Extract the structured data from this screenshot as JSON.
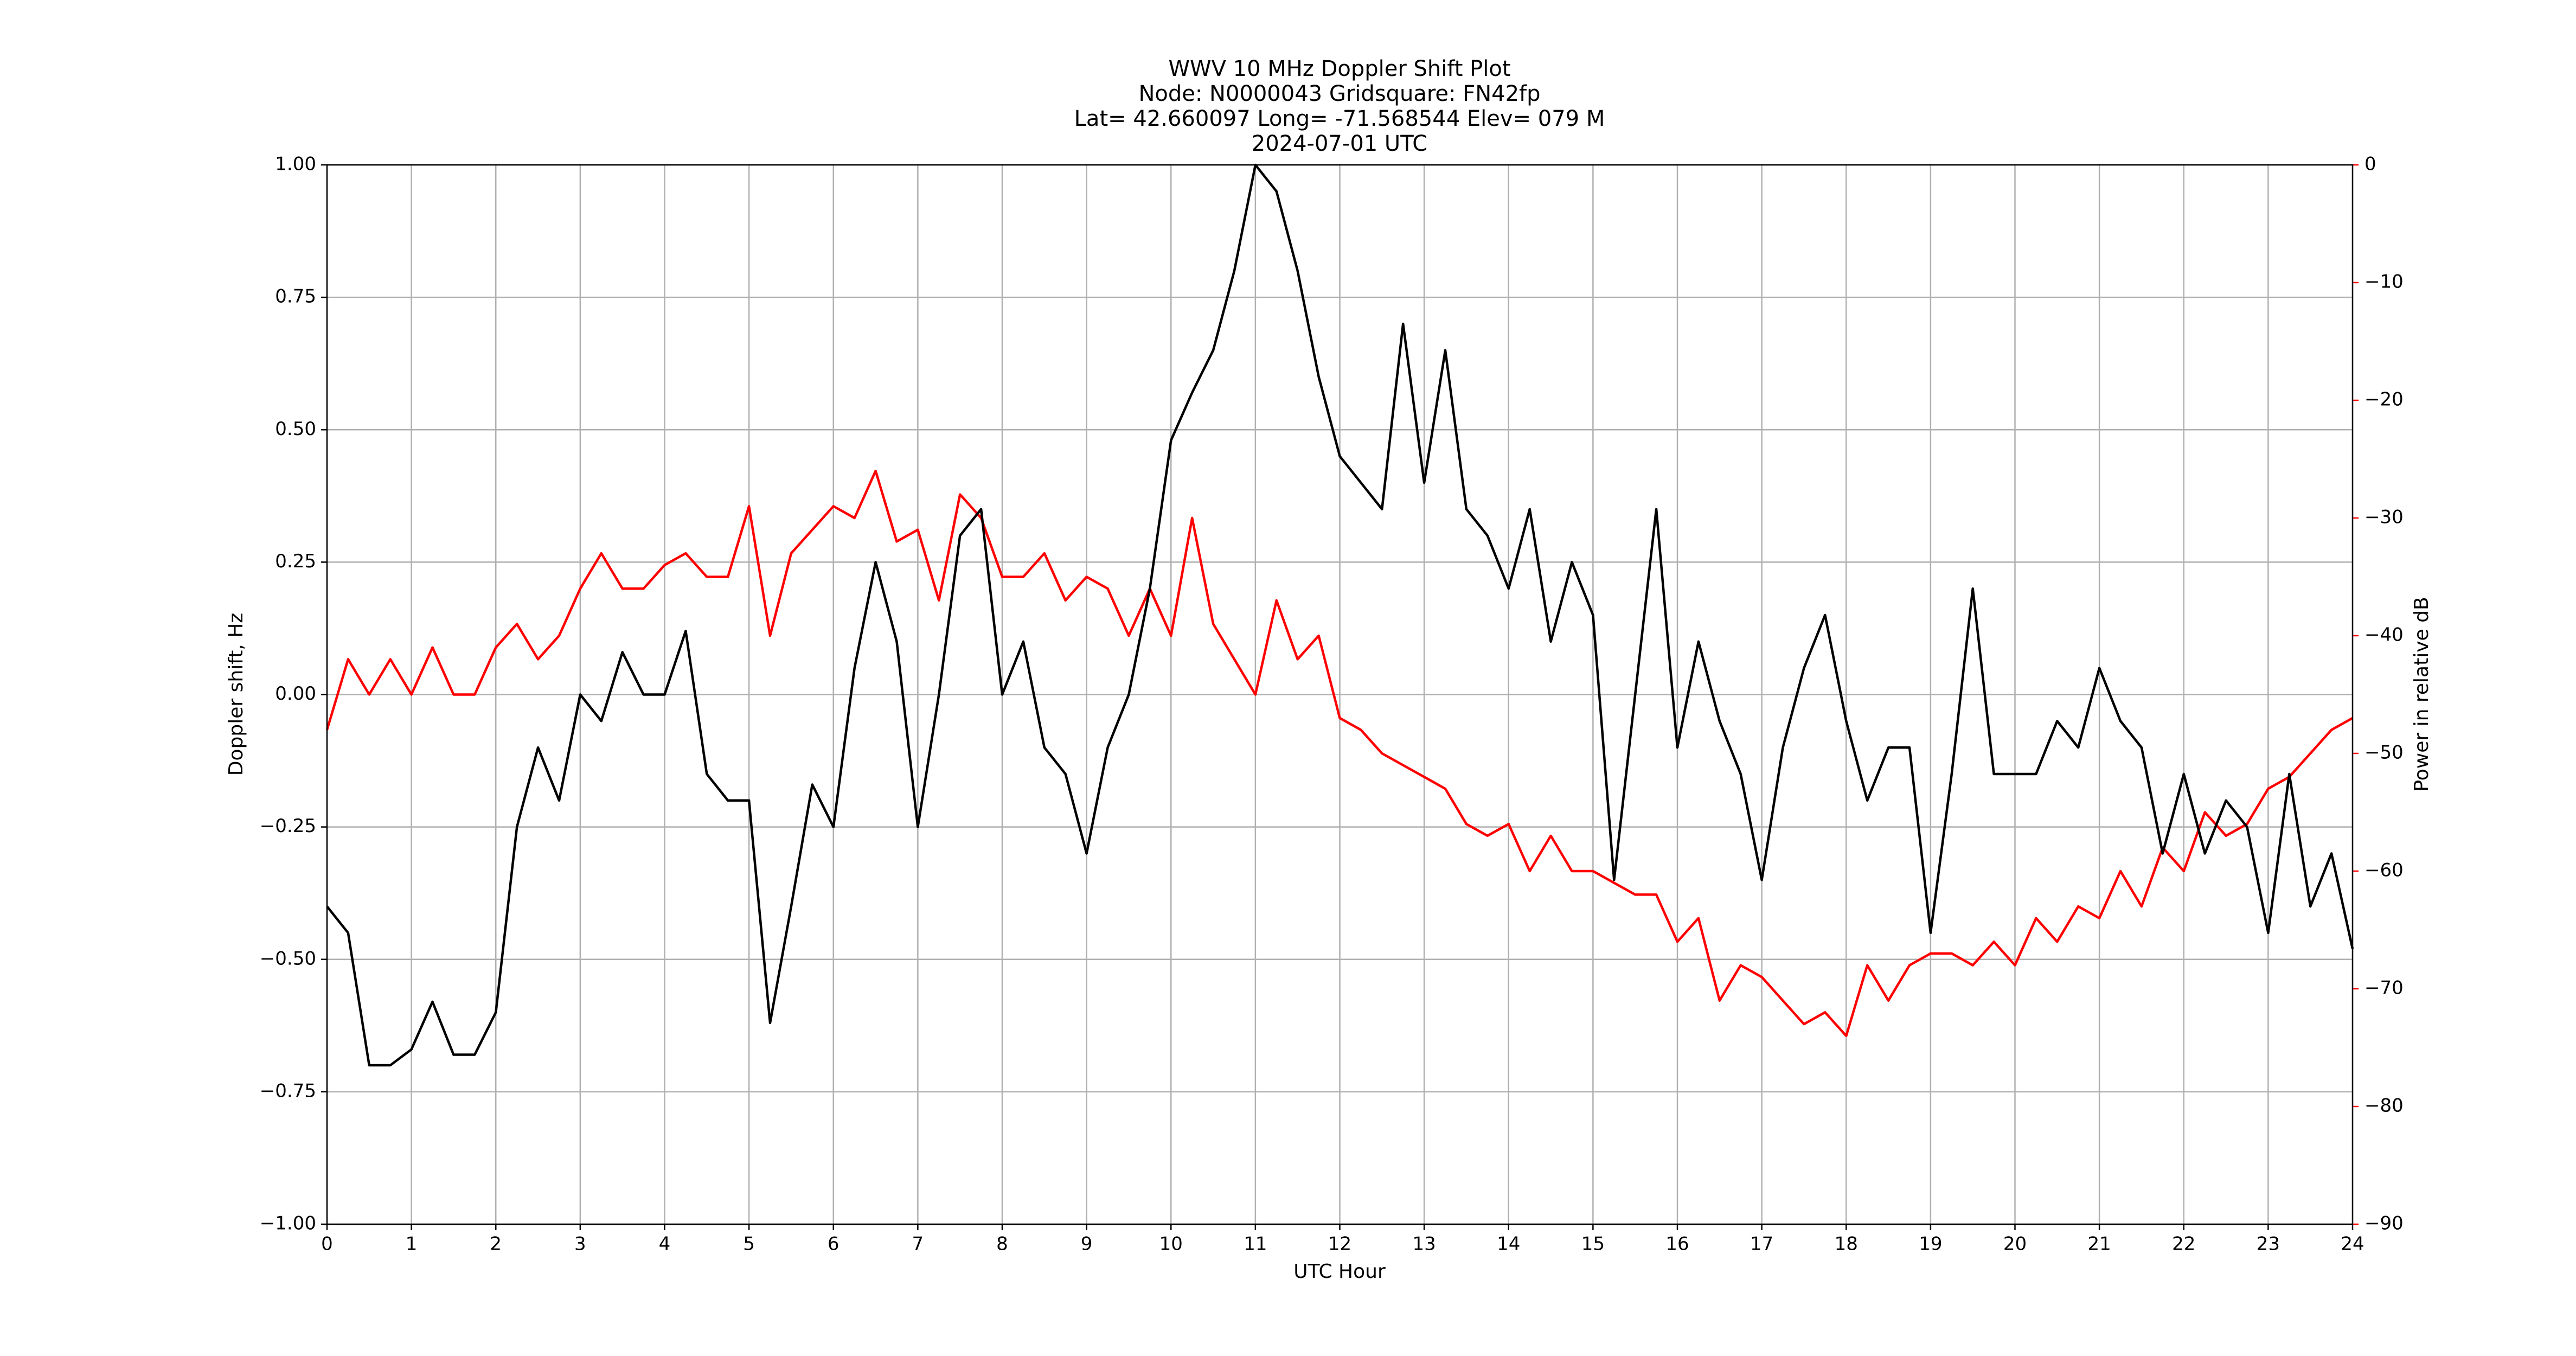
{
  "chart_data": {
    "type": "line",
    "title": [
      "WWV 10 MHz Doppler Shift Plot",
      "Node:  N0000043     Gridsquare:  FN42fp",
      "Lat= 42.660097    Long= -71.568544    Elev= 079 M",
      "2024-07-01  UTC"
    ],
    "xlabel": "UTC Hour",
    "ylabel": "Doppler shift, Hz",
    "y2label": "Power in relative dB",
    "x": [
      0,
      0.25,
      0.5,
      0.75,
      1,
      1.25,
      1.5,
      1.75,
      2,
      2.25,
      2.5,
      2.75,
      3,
      3.25,
      3.5,
      3.75,
      4,
      4.25,
      4.5,
      4.75,
      5,
      5.25,
      5.5,
      5.75,
      6,
      6.25,
      6.5,
      6.75,
      7,
      7.25,
      7.5,
      7.75,
      8,
      8.25,
      8.5,
      8.75,
      9,
      9.25,
      9.5,
      9.75,
      10,
      10.25,
      10.5,
      10.75,
      11,
      11.25,
      11.5,
      11.75,
      12,
      12.25,
      12.5,
      12.75,
      13,
      13.25,
      13.5,
      13.75,
      14,
      14.25,
      14.5,
      14.75,
      15,
      15.25,
      15.5,
      15.75,
      16,
      16.25,
      16.5,
      16.75,
      17,
      17.25,
      17.5,
      17.75,
      18,
      18.25,
      18.5,
      18.75,
      19,
      19.25,
      19.5,
      19.75,
      20,
      20.25,
      20.5,
      20.75,
      21,
      21.25,
      21.5,
      21.75,
      22,
      22.25,
      22.5,
      22.75,
      23,
      23.25,
      23.5,
      23.75,
      24
    ],
    "series": [
      {
        "name": "Doppler shift",
        "color": "#000000",
        "axis": "y",
        "values": [
          -0.4,
          -0.45,
          -0.7,
          -0.7,
          -0.67,
          -0.58,
          -0.68,
          -0.68,
          -0.6,
          -0.25,
          -0.1,
          -0.2,
          0.0,
          -0.05,
          0.08,
          0.0,
          0.0,
          0.12,
          -0.15,
          -0.2,
          -0.2,
          -0.62,
          -0.4,
          -0.17,
          -0.25,
          0.05,
          0.25,
          0.1,
          -0.25,
          0.0,
          0.3,
          0.35,
          0.0,
          0.1,
          -0.1,
          -0.15,
          -0.3,
          -0.1,
          0.0,
          0.2,
          0.48,
          0.57,
          0.65,
          0.8,
          1.0,
          0.95,
          0.8,
          0.6,
          0.45,
          0.4,
          0.35,
          0.7,
          0.4,
          0.65,
          0.35,
          0.3,
          0.2,
          0.35,
          0.1,
          0.25,
          0.15,
          -0.35,
          0.0,
          0.35,
          -0.1,
          0.1,
          -0.05,
          -0.15,
          -0.35,
          -0.1,
          0.05,
          0.15,
          -0.05,
          -0.2,
          -0.1,
          -0.1,
          -0.45,
          -0.15,
          0.2,
          -0.15,
          -0.15,
          -0.15,
          -0.05,
          -0.1,
          0.05,
          -0.05,
          -0.1,
          -0.3,
          -0.15,
          -0.3,
          -0.2,
          -0.25,
          -0.45,
          -0.15,
          -0.4,
          -0.3,
          -0.48
        ]
      },
      {
        "name": "Power",
        "color": "#ff0000",
        "axis": "y2",
        "values": [
          -48,
          -42,
          -45,
          -42,
          -45,
          -41,
          -45,
          -45,
          -41,
          -39,
          -42,
          -40,
          -36,
          -33,
          -36,
          -36,
          -34,
          -33,
          -35,
          -35,
          -29,
          -40,
          -33,
          -31,
          -29,
          -30,
          -26,
          -32,
          -31,
          -37,
          -28,
          -30,
          -35,
          -35,
          -33,
          -37,
          -35,
          -36,
          -40,
          -36,
          -40,
          -30,
          -39,
          -42,
          -45,
          -37,
          -42,
          -40,
          -47,
          -48,
          -50,
          -51,
          -52,
          -53,
          -56,
          -57,
          -56,
          -60,
          -57,
          -60,
          -60,
          -61,
          -62,
          -62,
          -66,
          -64,
          -71,
          -68,
          -69,
          -71,
          -73,
          -72,
          -74,
          -68,
          -71,
          -68,
          -67,
          -67,
          -68,
          -66,
          -68,
          -64,
          -66,
          -63,
          -64,
          -60,
          -63,
          -58,
          -60,
          -55,
          -57,
          -56,
          -53,
          -52,
          -50,
          -48,
          -47
        ]
      }
    ],
    "xlim": [
      0,
      24
    ],
    "xticks": [
      0,
      1,
      2,
      3,
      4,
      5,
      6,
      7,
      8,
      9,
      10,
      11,
      12,
      13,
      14,
      15,
      16,
      17,
      18,
      19,
      20,
      21,
      22,
      23,
      24
    ],
    "ylim": [
      -1,
      1
    ],
    "yticks": [
      {
        "value": -1,
        "label": "−1.00"
      },
      {
        "value": -0.75,
        "label": "−0.75"
      },
      {
        "value": -0.5,
        "label": "−0.50"
      },
      {
        "value": -0.25,
        "label": "−0.25"
      },
      {
        "value": 0,
        "label": "0.00"
      },
      {
        "value": 0.25,
        "label": "0.25"
      },
      {
        "value": 0.5,
        "label": "0.50"
      },
      {
        "value": 0.75,
        "label": "0.75"
      },
      {
        "value": 1,
        "label": "1.00"
      }
    ],
    "y2lim": [
      -90,
      0
    ],
    "y2ticks": [
      {
        "value": -90,
        "label": "−90"
      },
      {
        "value": -80,
        "label": "−80"
      },
      {
        "value": -70,
        "label": "−70"
      },
      {
        "value": -60,
        "label": "−60"
      },
      {
        "value": -50,
        "label": "−50"
      },
      {
        "value": -40,
        "label": "−40"
      },
      {
        "value": -30,
        "label": "−30"
      },
      {
        "value": -20,
        "label": "−20"
      },
      {
        "value": -10,
        "label": "−10"
      },
      0
    ],
    "grid": true
  }
}
